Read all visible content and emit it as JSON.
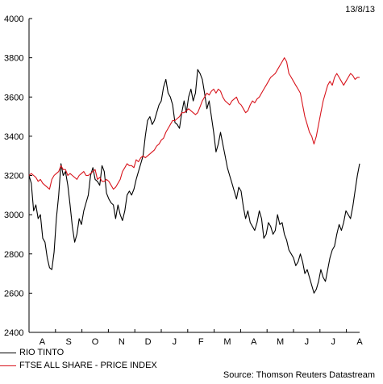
{
  "chart_data": {
    "type": "line",
    "date_label": "13/8/13",
    "source": "Source: Thomson Reuters Datastream",
    "ylim": [
      2400,
      4000
    ],
    "y_ticks": [
      2400,
      2600,
      2800,
      3000,
      3200,
      3400,
      3600,
      3800,
      4000
    ],
    "x_ticks": [
      "A",
      "S",
      "O",
      "N",
      "D",
      "J",
      "F",
      "M",
      "A",
      "M",
      "J",
      "J",
      "A"
    ],
    "grid": false,
    "legend_position": "bottom-left",
    "colors": {
      "rio": "#000000",
      "ftse": "#d8141c"
    },
    "series": [
      {
        "name": "RIO TINTO",
        "values": [
          3200,
          3160,
          3020,
          3050,
          2980,
          3000,
          2880,
          2860,
          2780,
          2730,
          2720,
          2810,
          2980,
          3100,
          3260,
          3200,
          3220,
          3150,
          3050,
          2940,
          2860,
          2900,
          2980,
          2950,
          3020,
          3060,
          3100,
          3200,
          3240,
          3180,
          3170,
          3150,
          3250,
          3220,
          3110,
          3080,
          3060,
          3050,
          2980,
          3050,
          3000,
          2970,
          3020,
          3100,
          3120,
          3100,
          3130,
          3180,
          3220,
          3260,
          3300,
          3400,
          3480,
          3500,
          3460,
          3480,
          3520,
          3560,
          3580,
          3650,
          3690,
          3620,
          3600,
          3560,
          3470,
          3460,
          3440,
          3520,
          3580,
          3520,
          3600,
          3640,
          3580,
          3620,
          3740,
          3720,
          3690,
          3620,
          3540,
          3580,
          3500,
          3420,
          3320,
          3360,
          3420,
          3360,
          3300,
          3240,
          3200,
          3160,
          3120,
          3080,
          3140,
          3120,
          3040,
          2980,
          3020,
          2960,
          2940,
          2920,
          2960,
          3020,
          2980,
          2880,
          2900,
          2960,
          2940,
          2900,
          2920,
          3000,
          2950,
          2960,
          2900,
          2870,
          2820,
          2800,
          2780,
          2740,
          2760,
          2800,
          2760,
          2700,
          2720,
          2680,
          2640,
          2600,
          2620,
          2660,
          2720,
          2680,
          2660,
          2720,
          2780,
          2820,
          2840,
          2900,
          2950,
          2920,
          2960,
          3020,
          3000,
          2980,
          3040,
          3120,
          3200,
          3260
        ]
      },
      {
        "name": "FTSE ALL SHARE - PRICE INDEX",
        "values": [
          3200,
          3210,
          3200,
          3190,
          3170,
          3180,
          3160,
          3150,
          3140,
          3130,
          3180,
          3200,
          3210,
          3220,
          3250,
          3230,
          3230,
          3200,
          3210,
          3200,
          3190,
          3180,
          3200,
          3210,
          3220,
          3200,
          3200,
          3210,
          3220,
          3230,
          3180,
          3190,
          3170,
          3170,
          3180,
          3170,
          3150,
          3130,
          3140,
          3160,
          3180,
          3220,
          3240,
          3260,
          3250,
          3250,
          3240,
          3280,
          3270,
          3290,
          3300,
          3290,
          3300,
          3310,
          3320,
          3330,
          3350,
          3360,
          3380,
          3390,
          3420,
          3440,
          3460,
          3480,
          3480,
          3490,
          3500,
          3520,
          3520,
          3530,
          3540,
          3530,
          3520,
          3510,
          3520,
          3550,
          3580,
          3600,
          3620,
          3610,
          3630,
          3640,
          3620,
          3640,
          3630,
          3600,
          3580,
          3570,
          3560,
          3580,
          3590,
          3600,
          3570,
          3560,
          3540,
          3520,
          3530,
          3560,
          3580,
          3570,
          3590,
          3600,
          3620,
          3640,
          3660,
          3680,
          3700,
          3710,
          3720,
          3740,
          3760,
          3780,
          3800,
          3780,
          3720,
          3700,
          3680,
          3660,
          3640,
          3620,
          3560,
          3500,
          3460,
          3420,
          3400,
          3360,
          3400,
          3460,
          3520,
          3580,
          3620,
          3660,
          3680,
          3660,
          3700,
          3720,
          3700,
          3680,
          3660,
          3680,
          3700,
          3720,
          3710,
          3690,
          3700,
          3700
        ]
      }
    ]
  }
}
